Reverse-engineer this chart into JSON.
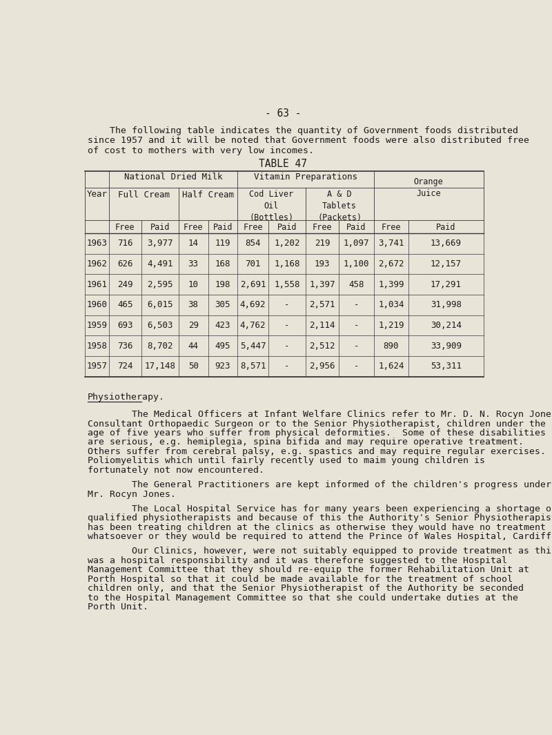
{
  "bg_color": "#e8e4d8",
  "page_number": "- 63 -",
  "intro_text": [
    "    The following table indicates the quantity of Government foods distributed",
    "since 1957 and it will be noted that Government foods were also distributed free",
    "of cost to mothers with very low incomes."
  ],
  "table_title": "TABLE 47",
  "col_headers_l3": [
    "Free",
    "Paid",
    "Free",
    "Paid",
    "Free",
    "Paid",
    "Free",
    "Paid",
    "Free",
    "Paid"
  ],
  "rows": [
    [
      "1963",
      "716",
      "3,977",
      "14",
      "119",
      "854",
      "1,202",
      "219",
      "1,097",
      "3,741",
      "13,669"
    ],
    [
      "1962",
      "626",
      "4,491",
      "33",
      "168",
      "701",
      "1,168",
      "193",
      "1,100",
      "2,672",
      "12,157"
    ],
    [
      "1961",
      "249",
      "2,595",
      "10",
      "198",
      "2,691",
      "1,558",
      "1,397",
      "458",
      "1,399",
      "17,291"
    ],
    [
      "1960",
      "465",
      "6,015",
      "38",
      "305",
      "4,692",
      "-",
      "2,571",
      "-",
      "1,034",
      "31,998"
    ],
    [
      "1959",
      "693",
      "6,503",
      "29",
      "423",
      "4,762",
      "-",
      "2,114",
      "-",
      "1,219",
      "30,214"
    ],
    [
      "1958",
      "736",
      "8,702",
      "44",
      "495",
      "5,447",
      "-",
      "2,512",
      "-",
      "890",
      "33,909"
    ],
    [
      "1957",
      "724",
      "17,148",
      "50",
      "923",
      "8,571",
      "-",
      "2,956",
      "-",
      "1,624",
      "53,311"
    ]
  ],
  "physio_heading": "Physiotherapy.",
  "physio_paragraphs": [
    "        The Medical Officers at Infant Welfare Clinics refer to Mr. D. N. Rocyn Jones,\nConsultant Orthopaedic Surgeon or to the Senior Physiotherapist, children under the\nage of five years who suffer from physical deformities.  Some of these disabilities\nare serious, e.g. hemiplegia, spina bifida and may require operative treatment.\nOthers suffer from cerebral palsy, e.g. spastics and may require regular exercises.\nPoliomyelitis which until fairly recently used to maim young children is\nfortunately not now encountered.",
    "        The General Practitioners are kept informed of the children's progress under\nMr. Rocyn Jones.",
    "        The Local Hospital Service has for many years been experiencing a shortage of\nqualified physiotherapists and because of this the Authority's Senior Physiotherapist\nhas been treating children at the clinics as otherwise they would have no treatment\nwhatsoever or they would be required to attend the Prince of Wales Hospital, Cardiff.",
    "        Our Clinics, however, were not suitably equipped to provide treatment as this\nwas a hospital responsibility and it was therefore suggested to the Hospital\nManagement Committee that they should re-equip the former Rehabilitation Unit at\nPorth Hospital so that it could be made available for the treatment of school\nchildren only, and that the Senior Physiotherapist of the Authority be seconded\nto the Hospital Management Committee so that she could undertake duties at the\nPorth Unit."
  ],
  "font_size_body": 9.5,
  "font_size_table": 9.0,
  "font_size_title": 10.5,
  "font_size_page_num": 11.0,
  "text_color": "#1a1a1a",
  "line_color": "#333333",
  "font_family": "monospace"
}
